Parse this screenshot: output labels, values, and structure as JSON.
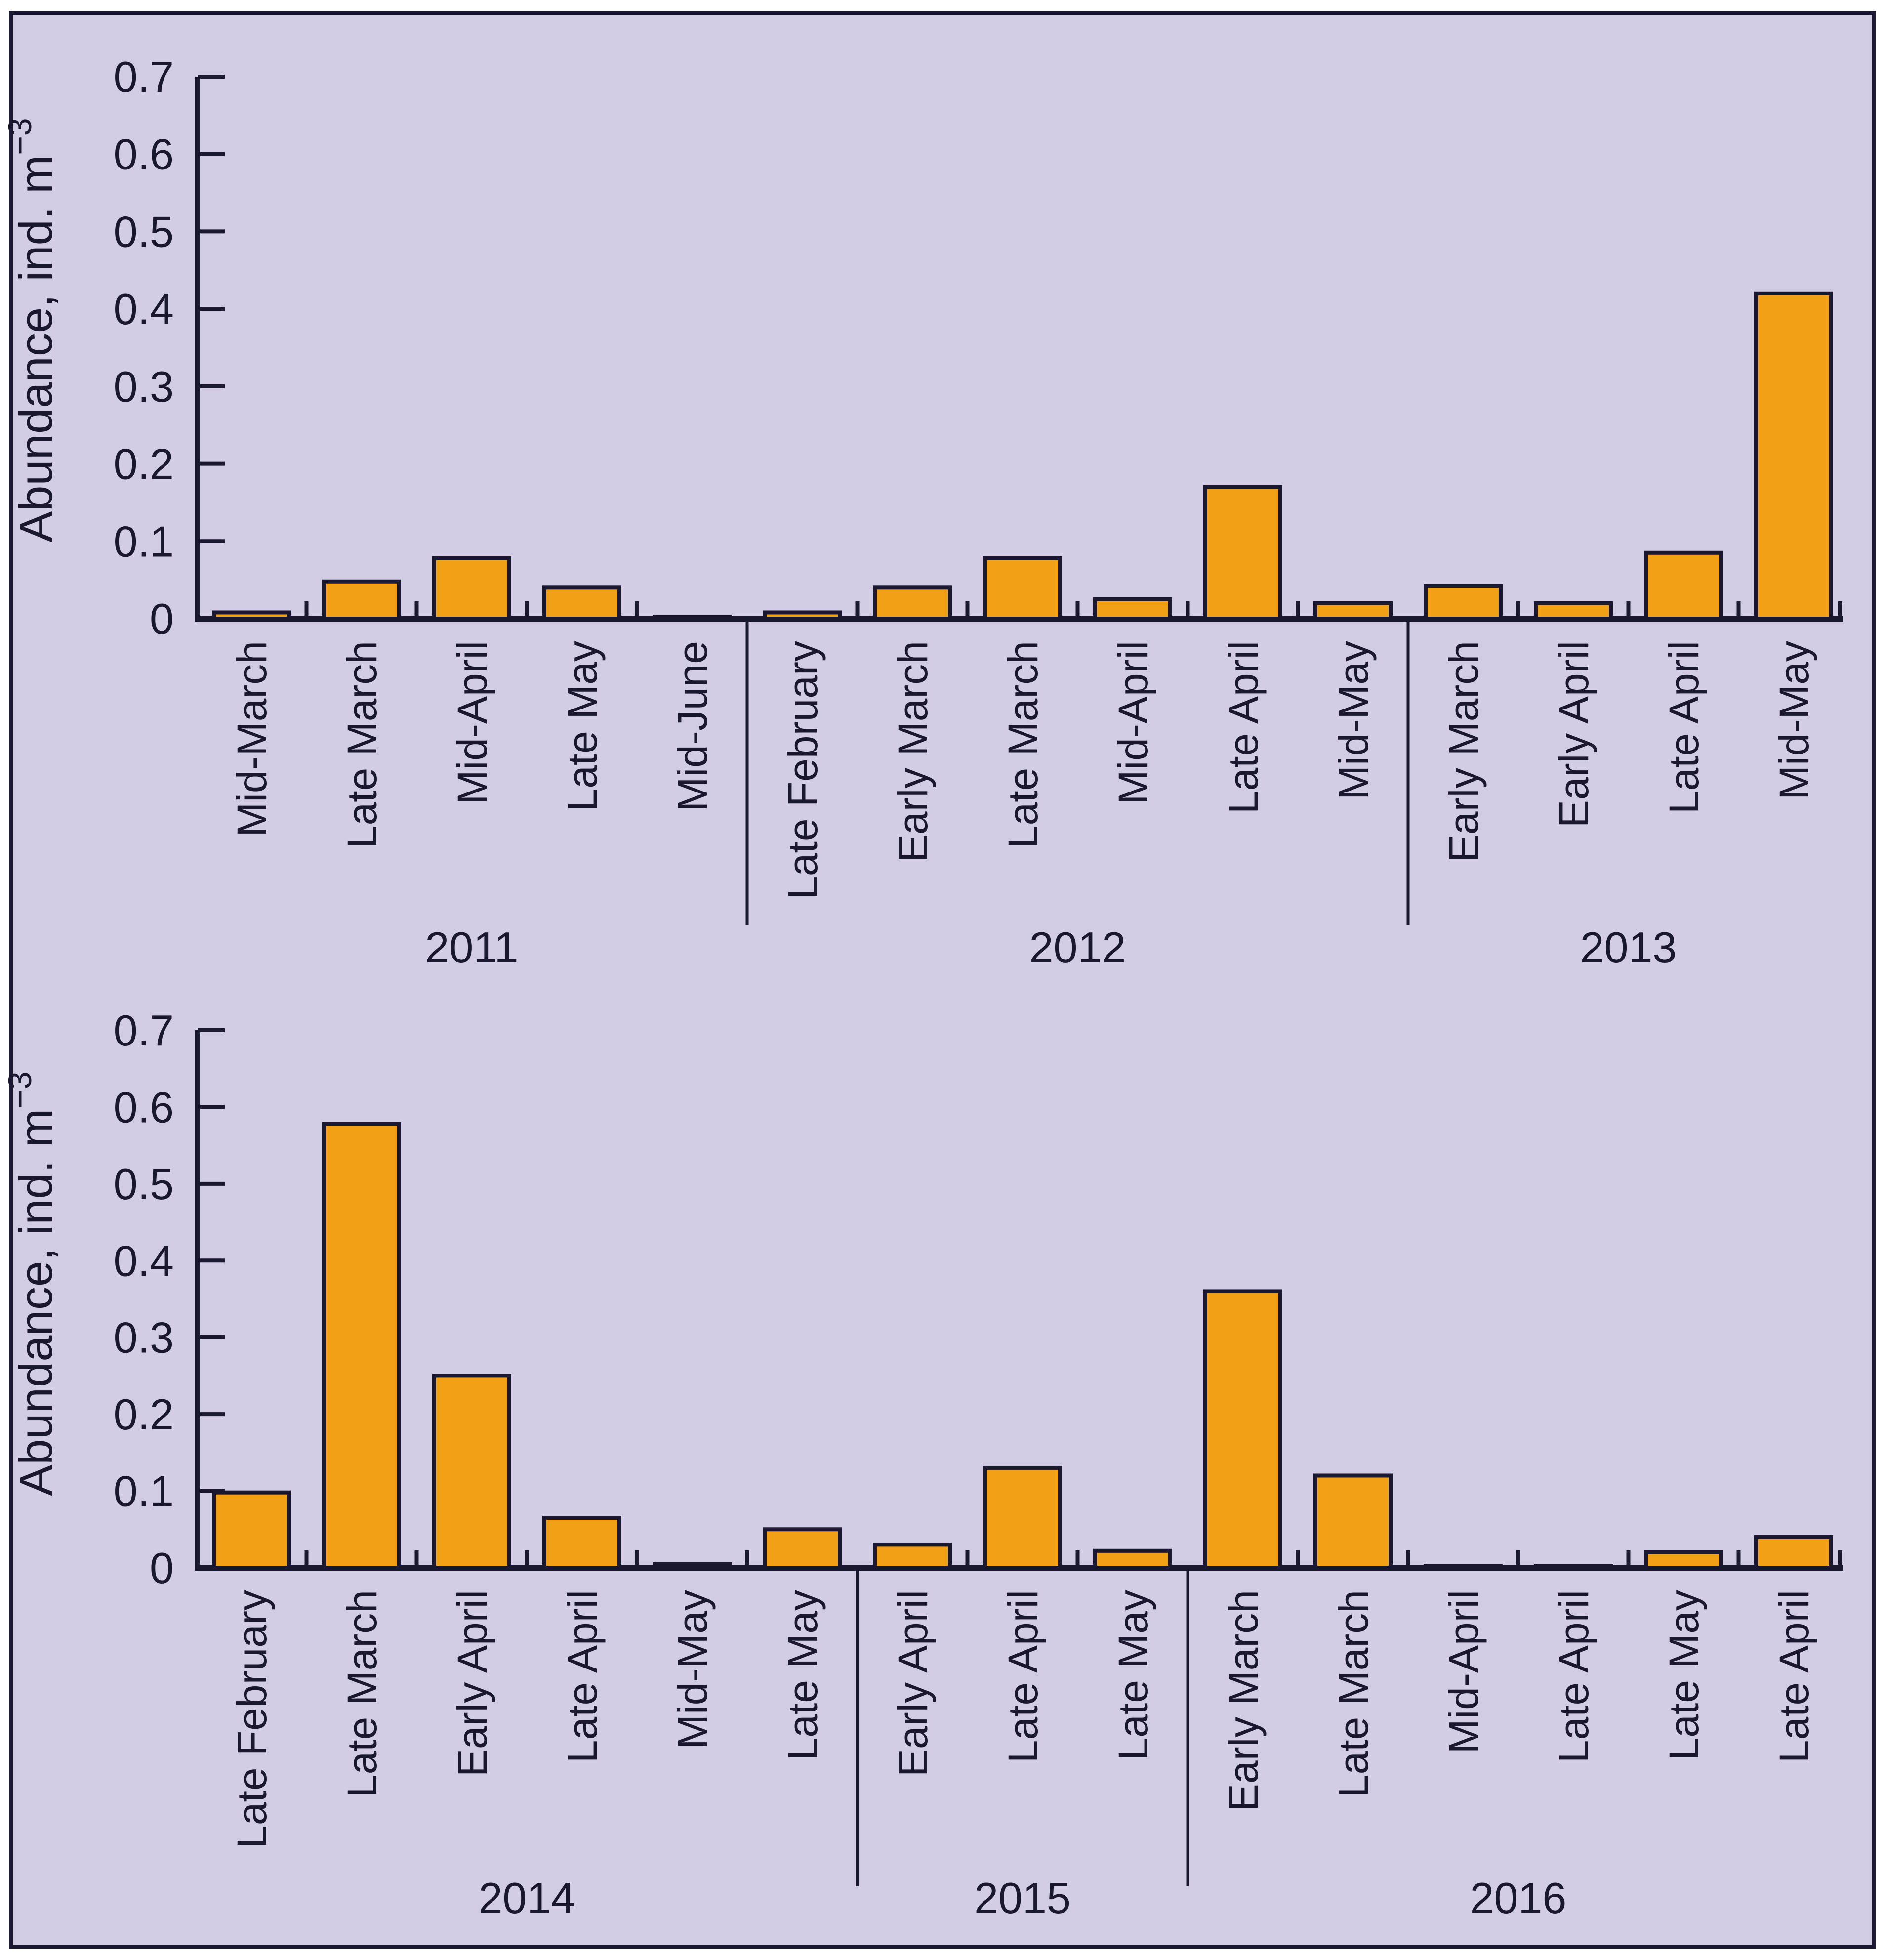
{
  "figure": {
    "frame_fill": "#d3cce5",
    "frame_stroke": "#1a1730",
    "page_background": "#ffffff"
  },
  "colors": {
    "bar_fill": "#f2a016",
    "bar_stroke": "#1a1730",
    "axis": "#1a1730",
    "text": "#1a1730"
  },
  "chart_data": [
    {
      "type": "bar",
      "position": "top",
      "ylabel": "Abundance, ind. m⁻³",
      "ylabel_base": "Abundance, ind. m",
      "ylabel_sup": "−3",
      "xlabel": "",
      "ylim": [
        0,
        0.7
      ],
      "ytick_step": 0.1,
      "ytick_labels": [
        "0",
        "0.1",
        "0.2",
        "0.3",
        "0.4",
        "0.5",
        "0.6",
        "0.7"
      ],
      "grid": false,
      "legend": null,
      "groups": [
        {
          "year": "2011",
          "categories": [
            "Mid-March",
            "Late March",
            "Mid-April",
            "Late May",
            "Mid-June"
          ],
          "values": [
            0.008,
            0.048,
            0.078,
            0.04,
            0.002
          ]
        },
        {
          "year": "2012",
          "categories": [
            "Late February",
            "Early March",
            "Late March",
            "Mid-April",
            "Late April",
            "Mid-May"
          ],
          "values": [
            0.008,
            0.04,
            0.078,
            0.025,
            0.17,
            0.02
          ]
        },
        {
          "year": "2013",
          "categories": [
            "Early March",
            "Early April",
            "Late April",
            "Mid-May"
          ],
          "values": [
            0.042,
            0.02,
            0.085,
            0.42
          ]
        }
      ]
    },
    {
      "type": "bar",
      "position": "bottom",
      "ylabel": "Abundance, ind. m⁻³",
      "ylabel_base": "Abundance, ind. m",
      "ylabel_sup": "−3",
      "xlabel": "",
      "ylim": [
        0,
        0.7
      ],
      "ytick_step": 0.1,
      "ytick_labels": [
        "0",
        "0.1",
        "0.2",
        "0.3",
        "0.4",
        "0.5",
        "0.6",
        "0.7"
      ],
      "grid": false,
      "legend": null,
      "groups": [
        {
          "year": "2014",
          "categories": [
            "Late February",
            "Late March",
            "Early April",
            "Late April",
            "Mid-May",
            "Late May"
          ],
          "values": [
            0.098,
            0.578,
            0.25,
            0.065,
            0.005,
            0.05
          ]
        },
        {
          "year": "2015",
          "categories": [
            "Early April",
            "Late April",
            "Late May"
          ],
          "values": [
            0.03,
            0.13,
            0.022
          ]
        },
        {
          "year": "2016",
          "categories": [
            "Early March",
            "Late March",
            "Mid-April",
            "Late April",
            "Late May",
            "Late April"
          ],
          "values": [
            0.36,
            0.12,
            0.002,
            0.002,
            0.02,
            0.04
          ]
        }
      ]
    }
  ]
}
